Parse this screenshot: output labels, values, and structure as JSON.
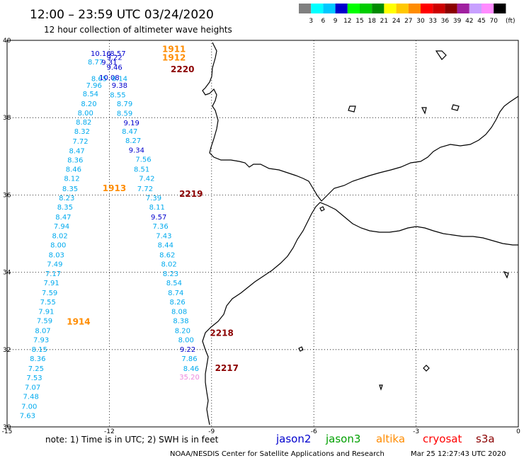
{
  "header": {
    "title": "12:00 – 23:59 UTC 03/24/2020",
    "subtitle": "12 hour collection of altimeter wave heights"
  },
  "legend": {
    "labels": [
      "3",
      "6",
      "9",
      "12",
      "15",
      "18",
      "21",
      "24",
      "27",
      "30",
      "33",
      "36",
      "39",
      "42",
      "45",
      "70"
    ],
    "unit": "(ft)",
    "colors": [
      "#808080",
      "#00ffff",
      "#00c8ff",
      "#0000cd",
      "#00ff00",
      "#00cd00",
      "#008b00",
      "#ffff00",
      "#ffc800",
      "#ff8c00",
      "#ff0000",
      "#cd0000",
      "#8b0000",
      "#a020a0",
      "#c8a0ff",
      "#ff8cff",
      "#000000"
    ]
  },
  "axes": {
    "lat_labels": [
      "40",
      "38",
      "36",
      "34",
      "32",
      "30"
    ],
    "lon_labels": [
      "-15",
      "-12",
      "-9",
      "-6",
      "-3",
      "0"
    ]
  },
  "colors": {
    "jason2": "#0000cd",
    "jason3": "#00a000",
    "altika": "#ff8c00",
    "cryosat": "#ff0000",
    "s3a": "#8b0000",
    "light": "#00aaee",
    "pink": "#ee88dd"
  },
  "note": "note:  1) Time is in UTC;  2) SWH is in feet",
  "satellites": [
    "jason2",
    "jason3",
    "altika",
    "cryosat",
    "s3a"
  ],
  "footer": {
    "credit": "NOAA/NESDIS Center for Satellite Applications and Research",
    "timestamp": "Mar 25 12:27:43 UTC 2020"
  },
  "passes": [
    {
      "label": "1911",
      "lon": -10.45,
      "lat": 39.7,
      "color": "altika"
    },
    {
      "label": "1912",
      "lon": -10.45,
      "lat": 39.48,
      "color": "altika"
    },
    {
      "label": "2220",
      "lon": -10.2,
      "lat": 39.18,
      "color": "s3a"
    },
    {
      "label": "1913",
      "lon": -12.2,
      "lat": 36.1,
      "color": "altika"
    },
    {
      "label": "2219",
      "lon": -9.95,
      "lat": 35.95,
      "color": "s3a"
    },
    {
      "label": "1914",
      "lon": -13.25,
      "lat": 32.65,
      "color": "altika"
    },
    {
      "label": "2218",
      "lon": -9.05,
      "lat": 32.35,
      "color": "s3a"
    },
    {
      "label": "2217",
      "lon": -8.9,
      "lat": 31.45,
      "color": "s3a"
    }
  ],
  "observations": {
    "westTrack": {
      "color": "light",
      "points": [
        {
          "lon": -12.4,
          "lat": 39.38,
          "v": "8.77"
        },
        {
          "lon": -12.3,
          "lat": 38.95,
          "v": "8.65"
        },
        {
          "lon": -12.45,
          "lat": 38.77,
          "v": "7.96"
        },
        {
          "lon": -12.55,
          "lat": 38.55,
          "v": "8.54"
        },
        {
          "lon": -12.6,
          "lat": 38.3,
          "v": "8.20"
        },
        {
          "lon": -12.7,
          "lat": 38.06,
          "v": "8.00"
        },
        {
          "lon": -12.75,
          "lat": 37.82,
          "v": "8.82"
        },
        {
          "lon": -12.8,
          "lat": 37.58,
          "v": "8.32"
        },
        {
          "lon": -12.85,
          "lat": 37.33,
          "v": "7.72"
        },
        {
          "lon": -12.95,
          "lat": 37.08,
          "v": "8.47"
        },
        {
          "lon": -13.0,
          "lat": 36.84,
          "v": "8.36"
        },
        {
          "lon": -13.05,
          "lat": 36.6,
          "v": "8.46"
        },
        {
          "lon": -13.1,
          "lat": 36.36,
          "v": "8.12"
        },
        {
          "lon": -13.15,
          "lat": 36.1,
          "v": "8.35"
        },
        {
          "lon": -13.25,
          "lat": 35.86,
          "v": "8.23"
        },
        {
          "lon": -13.3,
          "lat": 35.62,
          "v": "8.35"
        },
        {
          "lon": -13.35,
          "lat": 35.37,
          "v": "8.47"
        },
        {
          "lon": -13.4,
          "lat": 35.13,
          "v": "7.94"
        },
        {
          "lon": -13.45,
          "lat": 34.88,
          "v": "8.02"
        },
        {
          "lon": -13.5,
          "lat": 34.64,
          "v": "8.00"
        },
        {
          "lon": -13.55,
          "lat": 34.39,
          "v": "8.03"
        },
        {
          "lon": -13.6,
          "lat": 34.15,
          "v": "7.49"
        },
        {
          "lon": -13.65,
          "lat": 33.9,
          "v": "7.17"
        },
        {
          "lon": -13.7,
          "lat": 33.66,
          "v": "7.91"
        },
        {
          "lon": -13.75,
          "lat": 33.41,
          "v": "7.59"
        },
        {
          "lon": -13.8,
          "lat": 33.17,
          "v": "7.55"
        },
        {
          "lon": -13.85,
          "lat": 32.92,
          "v": "7.91"
        },
        {
          "lon": -13.9,
          "lat": 32.68,
          "v": "7.59"
        },
        {
          "lon": -13.95,
          "lat": 32.43,
          "v": "8.07"
        },
        {
          "lon": -14.0,
          "lat": 32.19,
          "v": "7.93"
        },
        {
          "lon": -14.05,
          "lat": 31.94,
          "v": "8.15"
        },
        {
          "lon": -14.1,
          "lat": 31.7,
          "v": "8.36"
        },
        {
          "lon": -14.15,
          "lat": 31.45,
          "v": "7.25"
        },
        {
          "lon": -14.2,
          "lat": 31.21,
          "v": "7.53"
        },
        {
          "lon": -14.25,
          "lat": 30.96,
          "v": "7.07"
        },
        {
          "lon": -14.3,
          "lat": 30.72,
          "v": "7.48"
        },
        {
          "lon": -14.35,
          "lat": 30.47,
          "v": "7.00"
        },
        {
          "lon": -14.4,
          "lat": 30.23,
          "v": "7.63"
        }
      ]
    },
    "westTrackDark": {
      "color": "jason2",
      "points": [
        {
          "lon": -12.25,
          "lat": 39.6,
          "v": "10.16"
        },
        {
          "lon": -12.0,
          "lat": 39.37,
          "v": "9.31"
        },
        {
          "lon": -12.0,
          "lat": 38.97,
          "v": "10.08"
        }
      ]
    },
    "eastTrack": {
      "color": "light",
      "points": [
        {
          "lon": -11.7,
          "lat": 38.95,
          "v": "8.14"
        },
        {
          "lon": -11.75,
          "lat": 38.53,
          "v": "8.55"
        },
        {
          "lon": -11.55,
          "lat": 38.3,
          "v": "8.79"
        },
        {
          "lon": -11.55,
          "lat": 38.05,
          "v": "8.59"
        },
        {
          "lon": -11.4,
          "lat": 37.58,
          "v": "8.47"
        },
        {
          "lon": -11.3,
          "lat": 37.34,
          "v": "8.27"
        },
        {
          "lon": -11.0,
          "lat": 36.86,
          "v": "7.56"
        },
        {
          "lon": -11.05,
          "lat": 36.6,
          "v": "8.51"
        },
        {
          "lon": -10.9,
          "lat": 36.36,
          "v": "7.42"
        },
        {
          "lon": -10.95,
          "lat": 36.1,
          "v": "7.72"
        },
        {
          "lon": -10.7,
          "lat": 35.86,
          "v": "7.39"
        },
        {
          "lon": -10.6,
          "lat": 35.62,
          "v": "8.11"
        },
        {
          "lon": -10.5,
          "lat": 35.13,
          "v": "7.36"
        },
        {
          "lon": -10.4,
          "lat": 34.88,
          "v": "7.43"
        },
        {
          "lon": -10.35,
          "lat": 34.64,
          "v": "8.44"
        },
        {
          "lon": -10.3,
          "lat": 34.39,
          "v": "8.62"
        },
        {
          "lon": -10.25,
          "lat": 34.15,
          "v": "8.02"
        },
        {
          "lon": -10.2,
          "lat": 33.9,
          "v": "8.23"
        },
        {
          "lon": -10.1,
          "lat": 33.66,
          "v": "8.54"
        },
        {
          "lon": -10.05,
          "lat": 33.41,
          "v": "8.74"
        },
        {
          "lon": -10.0,
          "lat": 33.17,
          "v": "8.26"
        },
        {
          "lon": -9.95,
          "lat": 32.92,
          "v": "8.08"
        },
        {
          "lon": -9.9,
          "lat": 32.68,
          "v": "8.38"
        },
        {
          "lon": -9.85,
          "lat": 32.43,
          "v": "8.20"
        },
        {
          "lon": -9.75,
          "lat": 32.19,
          "v": "8.00"
        },
        {
          "lon": -9.65,
          "lat": 31.7,
          "v": "7.86"
        },
        {
          "lon": -9.6,
          "lat": 31.45,
          "v": "8.46"
        }
      ]
    },
    "eastTrackDark": {
      "color": "jason2",
      "points": [
        {
          "lon": -11.75,
          "lat": 39.6,
          "v": "8.57"
        },
        {
          "lon": -11.85,
          "lat": 39.5,
          "v": "9.22"
        },
        {
          "lon": -11.85,
          "lat": 39.24,
          "v": "9.46"
        },
        {
          "lon": -11.7,
          "lat": 38.77,
          "v": "9.38"
        },
        {
          "lon": -11.35,
          "lat": 37.8,
          "v": "9.19"
        },
        {
          "lon": -11.2,
          "lat": 37.1,
          "v": "9.34"
        },
        {
          "lon": -10.55,
          "lat": 35.37,
          "v": "9.57"
        },
        {
          "lon": -9.7,
          "lat": 31.94,
          "v": "9.22"
        }
      ]
    },
    "pinkObs": {
      "color": "pink",
      "points": [
        {
          "lon": -9.65,
          "lat": 31.23,
          "v": "35.20"
        }
      ]
    }
  }
}
